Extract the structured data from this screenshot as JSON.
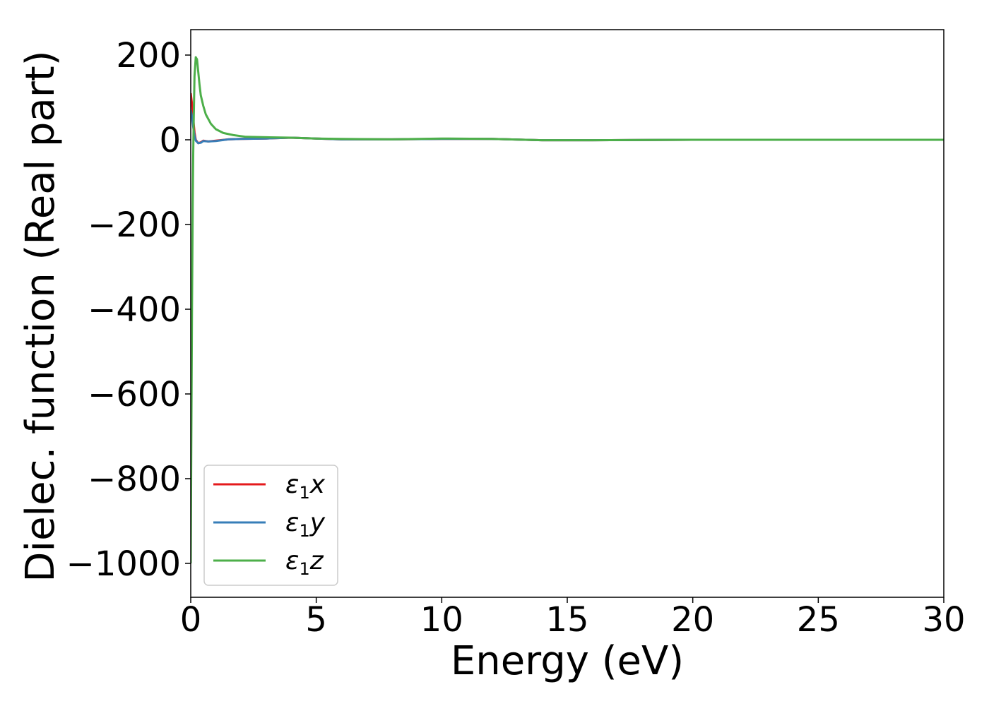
{
  "chart_data": {
    "type": "line",
    "title": "",
    "xlabel": "Energy (eV)",
    "ylabel": "Dielec. function (Real part)",
    "xlim": [
      0,
      30
    ],
    "ylim": [
      -1080,
      260
    ],
    "xticks": [
      0,
      5,
      10,
      15,
      20,
      25,
      30
    ],
    "xtick_labels": [
      "0",
      "5",
      "10",
      "15",
      "20",
      "25",
      "30"
    ],
    "yticks": [
      200,
      0,
      -200,
      -400,
      -600,
      -800,
      -1000
    ],
    "ytick_labels": [
      "200",
      "0",
      "−200",
      "−400",
      "−600",
      "−800",
      "−1000"
    ],
    "grid": false,
    "legend_position": "lower-left",
    "series": [
      {
        "name": "ε₁x",
        "color": "#e41a1c",
        "x": [
          0,
          0.05,
          0.1,
          0.15,
          0.2,
          0.3,
          0.4,
          0.5,
          0.7,
          1.0,
          1.5,
          2.0,
          3.0,
          4.0,
          5.0,
          6.0,
          8.0,
          10.0,
          12.0,
          14.0,
          16.0,
          20.0,
          25.0,
          30.0
        ],
        "y": [
          110,
          85,
          50,
          18,
          0,
          -8,
          -6,
          -2,
          -4,
          -2,
          1,
          2,
          3,
          5,
          3,
          1,
          1,
          2,
          2,
          -1,
          -1,
          0,
          0,
          0
        ]
      },
      {
        "name": "ε₁y",
        "color": "#377eb8",
        "x": [
          0,
          0.05,
          0.1,
          0.15,
          0.2,
          0.3,
          0.4,
          0.5,
          0.7,
          1.0,
          1.5,
          2.0,
          3.0,
          4.0,
          5.0,
          6.0,
          8.0,
          10.0,
          12.0,
          14.0,
          16.0,
          20.0,
          25.0,
          30.0
        ],
        "y": [
          70,
          55,
          30,
          10,
          -2,
          -8,
          -7,
          -3,
          -4,
          -3,
          1,
          2,
          3,
          5,
          3,
          1,
          1,
          2,
          2,
          -1,
          -1,
          0,
          0,
          0
        ]
      },
      {
        "name": "ε₁z",
        "color": "#4daf4a",
        "x": [
          0,
          0.02,
          0.05,
          0.08,
          0.1,
          0.12,
          0.15,
          0.2,
          0.25,
          0.3,
          0.35,
          0.4,
          0.5,
          0.6,
          0.8,
          1.0,
          1.3,
          1.7,
          2.2,
          3.0,
          4.0,
          5.0,
          6.0,
          8.0,
          10.0,
          12.0,
          14.0,
          16.0,
          20.0,
          25.0,
          30.0
        ],
        "y": [
          -1000,
          -750,
          -400,
          -150,
          -30,
          50,
          150,
          195,
          190,
          160,
          130,
          105,
          80,
          60,
          38,
          25,
          16,
          11,
          7,
          6,
          5,
          3,
          2,
          1,
          3,
          2,
          -1,
          -1,
          0,
          0,
          0
        ]
      }
    ]
  }
}
